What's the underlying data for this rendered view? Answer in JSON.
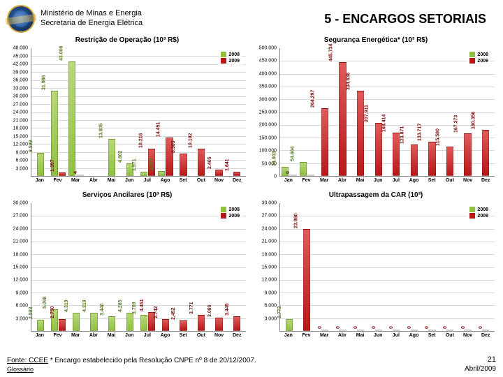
{
  "header": {
    "org_line1": "Ministério de Minas e Energia",
    "org_line2": "Secretaria de Energia Elétrica",
    "title": "5 - ENCARGOS SETORIAIS"
  },
  "colors": {
    "series_2008": {
      "top": "#b8d87a",
      "bottom": "#8fc13e",
      "label": "#5a7c1f"
    },
    "series_2009": {
      "top": "#e05a5a",
      "bottom": "#b91818",
      "label": "#7a0d0d"
    },
    "grid": "#d9d9d9",
    "axis": "#808080",
    "bg": "#ffffff"
  },
  "legend": {
    "s1": "2008",
    "s2": "2009"
  },
  "months": [
    "Jan",
    "Fev",
    "Mar",
    "Abr",
    "Mai",
    "Jun",
    "Jul",
    "Ago",
    "Set",
    "Out",
    "Nov",
    "Dez"
  ],
  "charts": [
    {
      "title": "Restrição de Operação (10³ R$)",
      "ymax": 48000,
      "ystep": 3000,
      "ymin": 3000,
      "s2008": [
        8589,
        31986,
        43006,
        null,
        13805,
        4802,
        1571,
        1777,
        null,
        null,
        null,
        null
      ],
      "s2009": [
        null,
        1357,
        4,
        null,
        null,
        null,
        10216,
        14451,
        8303,
        10192,
        2405,
        1641
      ],
      "labels2008": [
        "8.589",
        "31.986",
        "43.006",
        "",
        "13.805",
        "4.802",
        "1.571",
        "1.777",
        "",
        "",
        "",
        ""
      ],
      "labels2009": [
        "",
        "1.357",
        "4",
        "",
        "",
        "",
        "10.216",
        "14.451",
        "8.303",
        "10.192",
        "2.405",
        "1.641"
      ]
    },
    {
      "title": "Segurança Energética* (10³ R$)",
      "ymax": 500000,
      "ystep": 50000,
      "ymin": 0,
      "s2008": [
        34903,
        54664,
        null,
        null,
        null,
        null,
        null,
        null,
        null,
        null,
        null,
        null
      ],
      "s2009": [
        0,
        0,
        264297,
        445734,
        334636,
        207911,
        168414,
        123871,
        133717,
        115580,
        167373,
        180356
      ],
      "labels2008": [
        "34.903",
        "54.664",
        "",
        "",
        "",
        "",
        "",
        "",
        "",
        "",
        "",
        ""
      ],
      "labels2009": [
        "0",
        "",
        "264.297",
        "445.734",
        "334.636",
        "207.911",
        "168.414",
        "123.871",
        "133.717",
        "115.580",
        "167.373",
        "180.356"
      ],
      "extra2008_label_idx": 1
    },
    {
      "title": "Serviços Ancilares (10³ R$)",
      "ymax": 30000,
      "ystep": 3000,
      "ymin": 3000,
      "s2008": [
        2583,
        5098,
        4319,
        4319,
        3440,
        4285,
        3789,
        null,
        null,
        null,
        null,
        null
      ],
      "s2009": [
        null,
        2750,
        null,
        null,
        null,
        null,
        4451,
        2742,
        2452,
        3771,
        3080,
        3445
      ],
      "labels2008": [
        "2.583",
        "5.098",
        "4.319",
        "4.319",
        "3.440",
        "4.285",
        "3.789",
        "",
        "",
        "",
        "",
        ""
      ],
      "labels2009": [
        "",
        "2.750",
        "",
        "",
        "",
        "",
        "4.451",
        "2.742",
        "2.452",
        "3.771",
        "3.080",
        "3.445"
      ],
      "trailing2009": [
        3165,
        3880
      ],
      "trailing2009_labels": [
        "3.165",
        "3.880"
      ]
    },
    {
      "title": "Ultrapassagem da CAR (10³)",
      "ymax": 30000,
      "ystep": 3000,
      "ymin": 3000,
      "s2008": [
        2772,
        null,
        null,
        null,
        null,
        null,
        null,
        null,
        null,
        null,
        null,
        null
      ],
      "s2009": [
        null,
        23980,
        0,
        0,
        0,
        0,
        0,
        0,
        0,
        0,
        0,
        0
      ],
      "labels2008": [
        "2.772",
        "",
        "",
        "",
        "",
        "",
        "",
        "",
        "",
        "",
        "",
        ""
      ],
      "labels2009": [
        "",
        "23.980",
        "0",
        "0",
        "0",
        "0",
        "0",
        "0",
        "0",
        "0",
        "0",
        "0"
      ]
    }
  ],
  "footer": {
    "fonte": "Fonte: CCEE",
    "note": "* Encargo estabelecido pela Resolução CNPE nº 8 de 20/12/2007.",
    "glossario": "Glossário",
    "page": "21",
    "date": "Abril/2009"
  }
}
